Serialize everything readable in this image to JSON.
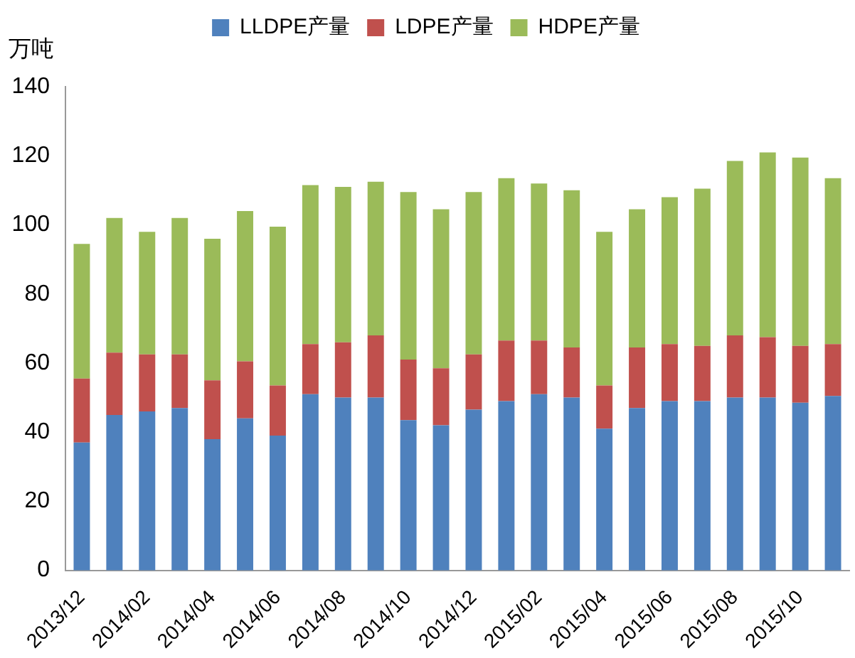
{
  "chart_data": {
    "type": "bar",
    "stacked": true,
    "ylabel": "万吨",
    "legend": "top",
    "grid": false,
    "categories": [
      "2013/12",
      null,
      "2014/02",
      null,
      "2014/04",
      null,
      "2014/06",
      null,
      "2014/08",
      null,
      "2014/10",
      null,
      "2014/12",
      null,
      "2015/02",
      null,
      "2015/04",
      null,
      "2015/06",
      null,
      "2015/08",
      null,
      "2015/10",
      null
    ],
    "series": [
      {
        "name": "LLDPE产量",
        "color": "#4f81bd",
        "values": [
          37,
          45,
          46,
          47,
          38,
          44,
          39,
          51,
          50,
          50,
          43.5,
          42,
          46.5,
          49,
          51,
          50,
          41,
          47,
          49,
          49,
          50,
          50,
          48.5,
          50.5
        ]
      },
      {
        "name": "LDPE产量",
        "color": "#c0504d",
        "values": [
          18.5,
          18,
          16.5,
          15.5,
          17,
          16.5,
          14.5,
          14.5,
          16,
          18,
          17.5,
          16.5,
          16,
          17.5,
          15.5,
          14.5,
          12.5,
          17.5,
          16.5,
          16,
          18,
          17.5,
          16.5,
          15
        ]
      },
      {
        "name": "HDPE产量",
        "color": "#9bbb59",
        "values": [
          39,
          39,
          35.5,
          39.5,
          41,
          43.5,
          46,
          46,
          45,
          44.5,
          48.5,
          46,
          47,
          47,
          45.5,
          45.5,
          44.5,
          40,
          42.5,
          45.5,
          50.5,
          53.5,
          54.5,
          48
        ]
      }
    ],
    "ylim": [
      0,
      140
    ],
    "yticks": [
      0,
      20,
      40,
      60,
      80,
      100,
      120,
      140
    ]
  }
}
